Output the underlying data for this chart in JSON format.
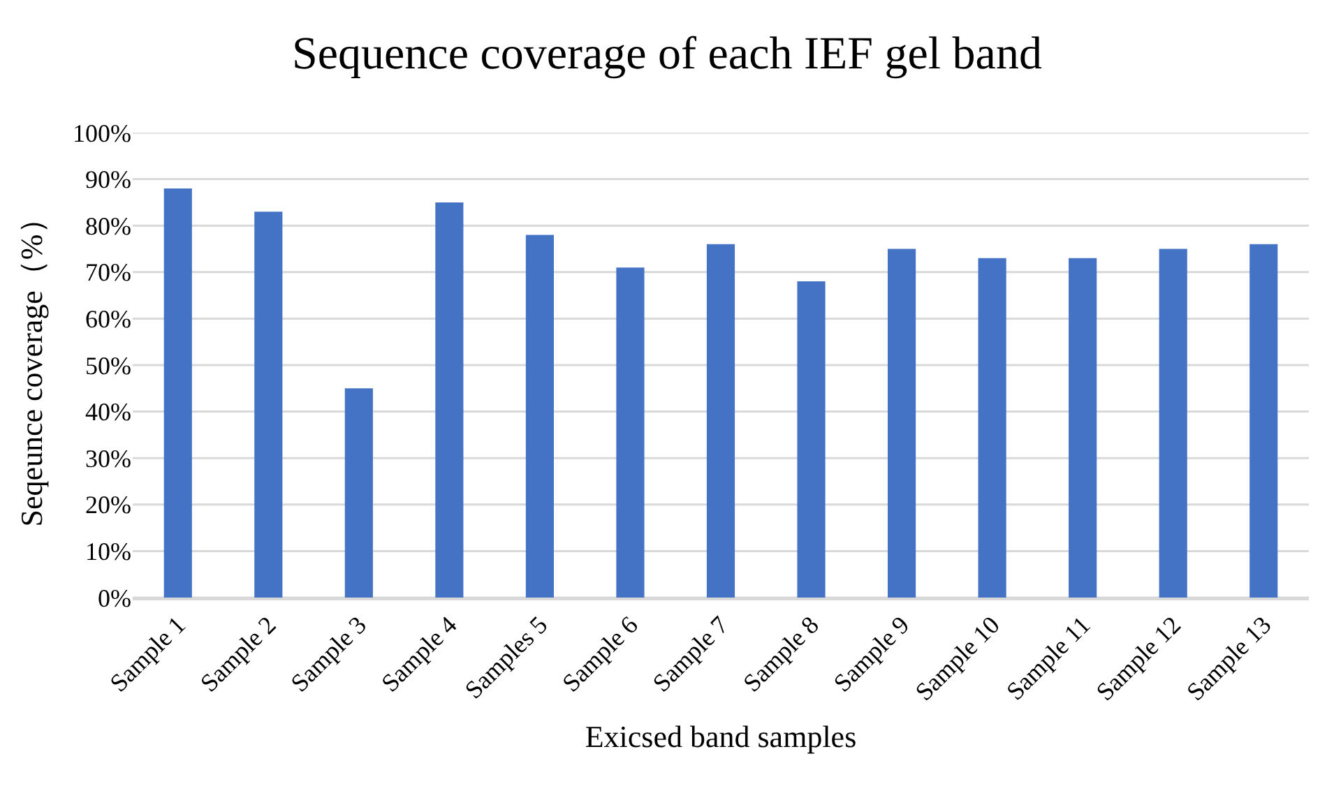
{
  "chart_data": {
    "type": "bar",
    "title": "Sequence coverage of each IEF gel band",
    "xlabel": "Exicsed band samples",
    "ylabel": "Seqeunce coverage（%）",
    "categories": [
      "Sample 1",
      "Sample 2",
      "Sample 3",
      "Sample 4",
      "Samples 5",
      "Sample 6",
      "Sample 7",
      "Sample 8",
      "Sample 9",
      "Sample 10",
      "Sample 11",
      "Sample 12",
      "Sample 13"
    ],
    "values": [
      88,
      83,
      45,
      85,
      78,
      71,
      76,
      68,
      75,
      73,
      73,
      75,
      76
    ],
    "color": "#4472c4",
    "ylim": [
      0,
      100
    ],
    "yticks": [
      {
        "value": 0,
        "label": "0%"
      },
      {
        "value": 10,
        "label": "10%"
      },
      {
        "value": 20,
        "label": "20%"
      },
      {
        "value": 30,
        "label": "30%"
      },
      {
        "value": 40,
        "label": "40%"
      },
      {
        "value": 50,
        "label": "50%"
      },
      {
        "value": 60,
        "label": "60%"
      },
      {
        "value": 70,
        "label": "70%"
      },
      {
        "value": 80,
        "label": "80%"
      },
      {
        "value": 90,
        "label": "90%"
      },
      {
        "value": 100,
        "label": "100%"
      }
    ],
    "grid": "y"
  }
}
